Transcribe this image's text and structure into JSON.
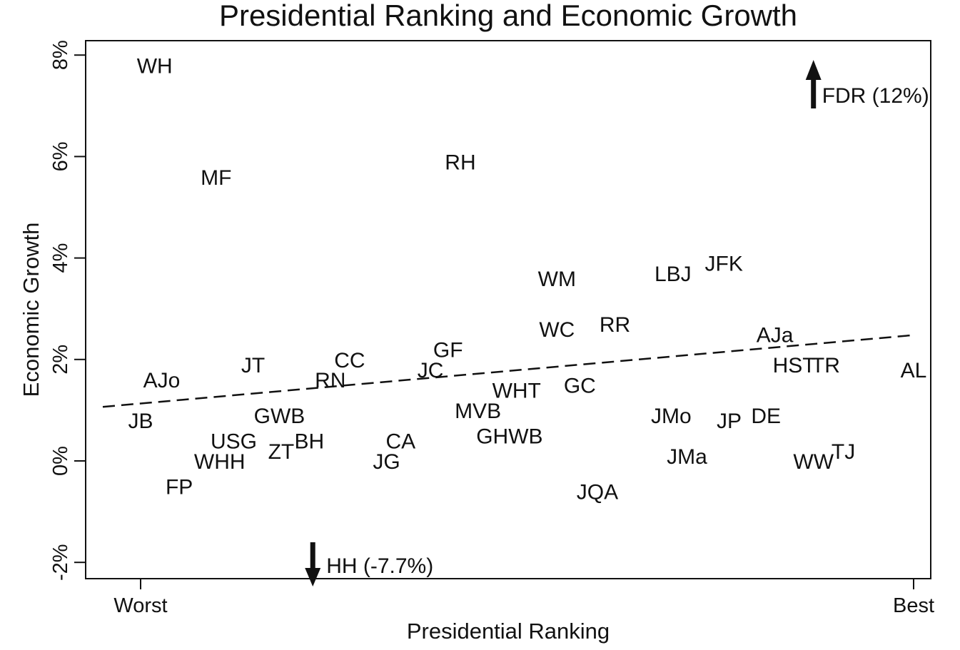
{
  "chart_data": {
    "type": "scatter",
    "title": "Presidential Ranking and Economic Growth",
    "xlabel": "Presidential Ranking",
    "ylabel": "Economic Growth",
    "x_tick_labels": [
      "Worst",
      "Best"
    ],
    "xlim": [
      1,
      44
    ],
    "ylim": [
      -2,
      8
    ],
    "y_ticks": [
      {
        "value": -2,
        "label": "-2%"
      },
      {
        "value": 0,
        "label": "0%"
      },
      {
        "value": 2,
        "label": "2%"
      },
      {
        "value": 4,
        "label": "4%"
      },
      {
        "value": 6,
        "label": "6%"
      },
      {
        "value": 8,
        "label": "8%"
      }
    ],
    "grid": false,
    "points": [
      {
        "label": "WH",
        "x": 0.8,
        "y": 7.8
      },
      {
        "label": "MF",
        "x": 4.3,
        "y": 5.6
      },
      {
        "label": "RH",
        "x": 18.2,
        "y": 5.9
      },
      {
        "label": "WM",
        "x": 23.7,
        "y": 3.6
      },
      {
        "label": "LBJ",
        "x": 30.3,
        "y": 3.7
      },
      {
        "label": "JFK",
        "x": 33.2,
        "y": 3.9
      },
      {
        "label": "WC",
        "x": 23.7,
        "y": 2.6
      },
      {
        "label": "RR",
        "x": 27.0,
        "y": 2.7
      },
      {
        "label": "AJa",
        "x": 36.1,
        "y": 2.5
      },
      {
        "label": "HST",
        "x": 37.2,
        "y": 1.9
      },
      {
        "label": "TR",
        "x": 39.0,
        "y": 1.9
      },
      {
        "label": "AL",
        "x": 44.0,
        "y": 1.8
      },
      {
        "label": "GF",
        "x": 17.5,
        "y": 2.2
      },
      {
        "label": "CC",
        "x": 11.9,
        "y": 2.0
      },
      {
        "label": "JT",
        "x": 6.4,
        "y": 1.9
      },
      {
        "label": "AJo",
        "x": 1.2,
        "y": 1.6
      },
      {
        "label": "RN",
        "x": 10.8,
        "y": 1.6
      },
      {
        "label": "JC",
        "x": 16.5,
        "y": 1.8
      },
      {
        "label": "GC",
        "x": 25.0,
        "y": 1.5
      },
      {
        "label": "WHT",
        "x": 21.4,
        "y": 1.4
      },
      {
        "label": "JB",
        "x": 0.0,
        "y": 0.8
      },
      {
        "label": "GWB",
        "x": 7.9,
        "y": 0.9
      },
      {
        "label": "MVB",
        "x": 19.2,
        "y": 1.0
      },
      {
        "label": "JMo",
        "x": 30.2,
        "y": 0.9
      },
      {
        "label": "JP",
        "x": 33.5,
        "y": 0.8
      },
      {
        "label": "DE",
        "x": 35.6,
        "y": 0.9
      },
      {
        "label": "USG",
        "x": 5.3,
        "y": 0.4
      },
      {
        "label": "BH",
        "x": 9.6,
        "y": 0.4
      },
      {
        "label": "ZT",
        "x": 8.0,
        "y": 0.2
      },
      {
        "label": "CA",
        "x": 14.8,
        "y": 0.4
      },
      {
        "label": "GHWB",
        "x": 21.0,
        "y": 0.5
      },
      {
        "label": "JMa",
        "x": 31.1,
        "y": 0.1
      },
      {
        "label": "TJ",
        "x": 40.0,
        "y": 0.2
      },
      {
        "label": "WW",
        "x": 38.3,
        "y": 0.0
      },
      {
        "label": "WHH",
        "x": 4.5,
        "y": 0.0
      },
      {
        "label": "JG",
        "x": 14.0,
        "y": 0.0
      },
      {
        "label": "FP",
        "x": 2.2,
        "y": -0.5
      },
      {
        "label": "JQA",
        "x": 26.0,
        "y": -0.6
      }
    ],
    "offscale_points": [
      {
        "label": "FDR (12%)",
        "x": 38.3,
        "y": 12.0,
        "direction": "up"
      },
      {
        "label": "HH (-7.7%)",
        "x": 9.8,
        "y": -7.7,
        "direction": "down"
      }
    ],
    "fit_line": {
      "style": "dashed",
      "x": [
        0,
        44
      ],
      "y": [
        1.08,
        2.48
      ]
    }
  }
}
